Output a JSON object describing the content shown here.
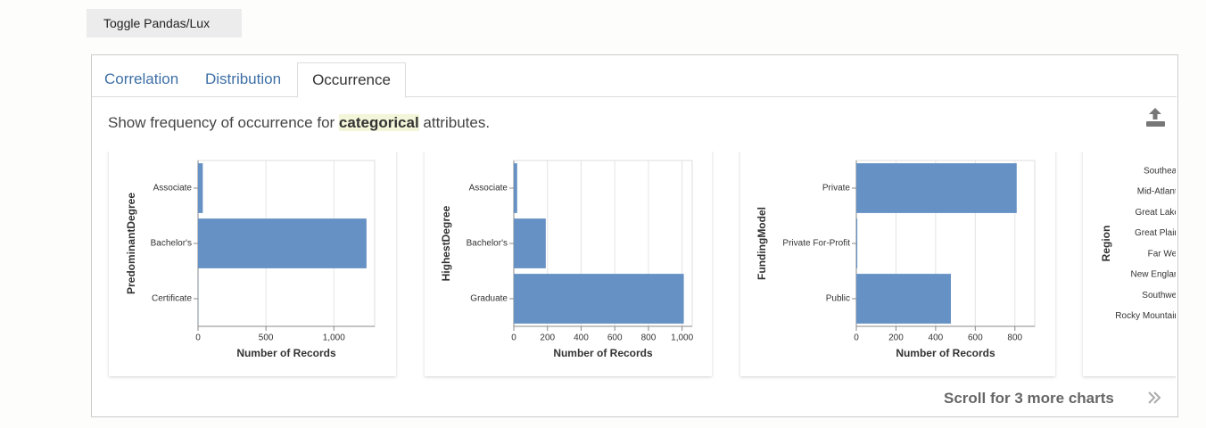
{
  "toggle_button": "Toggle Pandas/Lux",
  "tabs": [
    "Correlation",
    "Distribution",
    "Occurrence"
  ],
  "description": {
    "before": "Show frequency of occurrence for ",
    "highlight": "categorical",
    "after": " attributes."
  },
  "chart_data": [
    {
      "type": "bar",
      "orientation": "horizontal",
      "y_label": "PredominantDegree",
      "x_label": "Number of Records",
      "categories": [
        "Associate",
        "Bachelor's",
        "Certificate"
      ],
      "values": [
        35,
        1240,
        2
      ],
      "color": "#6591c4",
      "xlim": [
        0,
        1300
      ],
      "xticks": [
        0,
        500,
        {
          "value": 1000,
          "label": "1,000"
        }
      ],
      "grid": true
    },
    {
      "type": "bar",
      "orientation": "horizontal",
      "y_label": "HighestDegree",
      "x_label": "Number of Records",
      "categories": [
        "Associate",
        "Bachelor's",
        "Graduate"
      ],
      "values": [
        20,
        190,
        1010
      ],
      "color": "#6591c4",
      "xlim": [
        0,
        1060
      ],
      "xticks": [
        0,
        200,
        400,
        600,
        800,
        {
          "value": 1000,
          "label": "1,000"
        }
      ],
      "grid": true
    },
    {
      "type": "bar",
      "orientation": "horizontal",
      "y_label": "FundingModel",
      "x_label": "Number of Records",
      "categories": [
        "Private",
        "Private For-Profit",
        "Public"
      ],
      "values": [
        809,
        5,
        477
      ],
      "color": "#6591c4",
      "xlim": [
        0,
        900
      ],
      "xticks": [
        0,
        200,
        400,
        600,
        800
      ],
      "grid": true
    },
    {
      "type": "bar",
      "orientation": "horizontal",
      "y_label": "Region",
      "categories": [
        "Southeast",
        "Mid-Atlantic",
        "Great Lakes",
        "Great Plains",
        "Far West",
        "New England",
        "Southwest",
        "Rocky Mountains"
      ]
    }
  ],
  "footer": "Scroll for 3 more charts"
}
